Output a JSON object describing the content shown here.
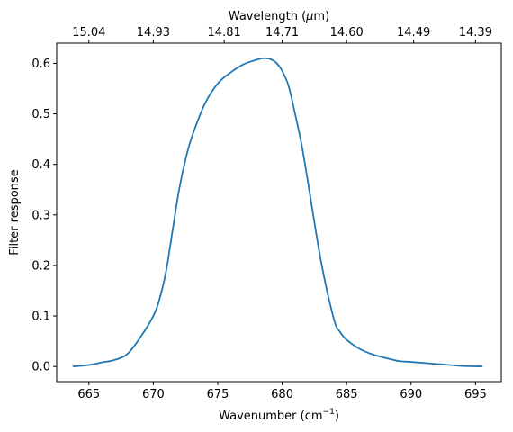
{
  "chart_data": {
    "type": "line",
    "title": "",
    "xlabel": "Wavenumber (cm",
    "xlabel_sup": "−1",
    "xlabel_suffix": ")",
    "ylabel": "Filter response",
    "top_xlabel_prefix": "Wavelength (",
    "top_xlabel_mu": "μ",
    "top_xlabel_suffix": "m)",
    "xlim": [
      662.5,
      697.0
    ],
    "ylim": [
      -0.03,
      0.64
    ],
    "xticks": [
      665,
      670,
      675,
      680,
      685,
      690,
      695
    ],
    "yticks": [
      0.0,
      0.1,
      0.2,
      0.3,
      0.4,
      0.5,
      0.6
    ],
    "ytick_labels": [
      "0.0",
      "0.1",
      "0.2",
      "0.3",
      "0.4",
      "0.5",
      "0.6"
    ],
    "top_xticks": [
      {
        "wavenumber": 665.0,
        "label": "15.04"
      },
      {
        "wavenumber": 670.0,
        "label": "14.93"
      },
      {
        "wavenumber": 675.5,
        "label": "14.81"
      },
      {
        "wavenumber": 680.0,
        "label": "14.71"
      },
      {
        "wavenumber": 685.0,
        "label": "14.60"
      },
      {
        "wavenumber": 690.2,
        "label": "14.49"
      },
      {
        "wavenumber": 695.0,
        "label": "14.39"
      }
    ],
    "grid": false,
    "line_color": "#1f77b4",
    "series": [
      {
        "x": [
          663.8,
          665.0,
          666.0,
          667.0,
          668.0,
          669.0,
          670.0,
          670.5,
          671.0,
          671.5,
          672.0,
          672.5,
          673.0,
          674.0,
          675.0,
          676.0,
          677.0,
          678.0,
          678.5,
          679.0,
          679.5,
          680.0,
          680.5,
          681.0,
          681.5,
          682.0,
          683.0,
          684.0,
          684.5,
          685.0,
          686.0,
          687.0,
          688.0,
          689.0,
          690.0,
          691.0,
          692.0,
          693.0,
          694.0,
          695.5
        ],
        "y": [
          0.0,
          0.003,
          0.008,
          0.013,
          0.025,
          0.058,
          0.1,
          0.135,
          0.19,
          0.27,
          0.35,
          0.41,
          0.455,
          0.52,
          0.56,
          0.582,
          0.598,
          0.607,
          0.61,
          0.609,
          0.602,
          0.585,
          0.555,
          0.5,
          0.44,
          0.365,
          0.21,
          0.095,
          0.068,
          0.053,
          0.035,
          0.024,
          0.017,
          0.011,
          0.009,
          0.007,
          0.005,
          0.003,
          0.001,
          0.0
        ]
      }
    ]
  }
}
